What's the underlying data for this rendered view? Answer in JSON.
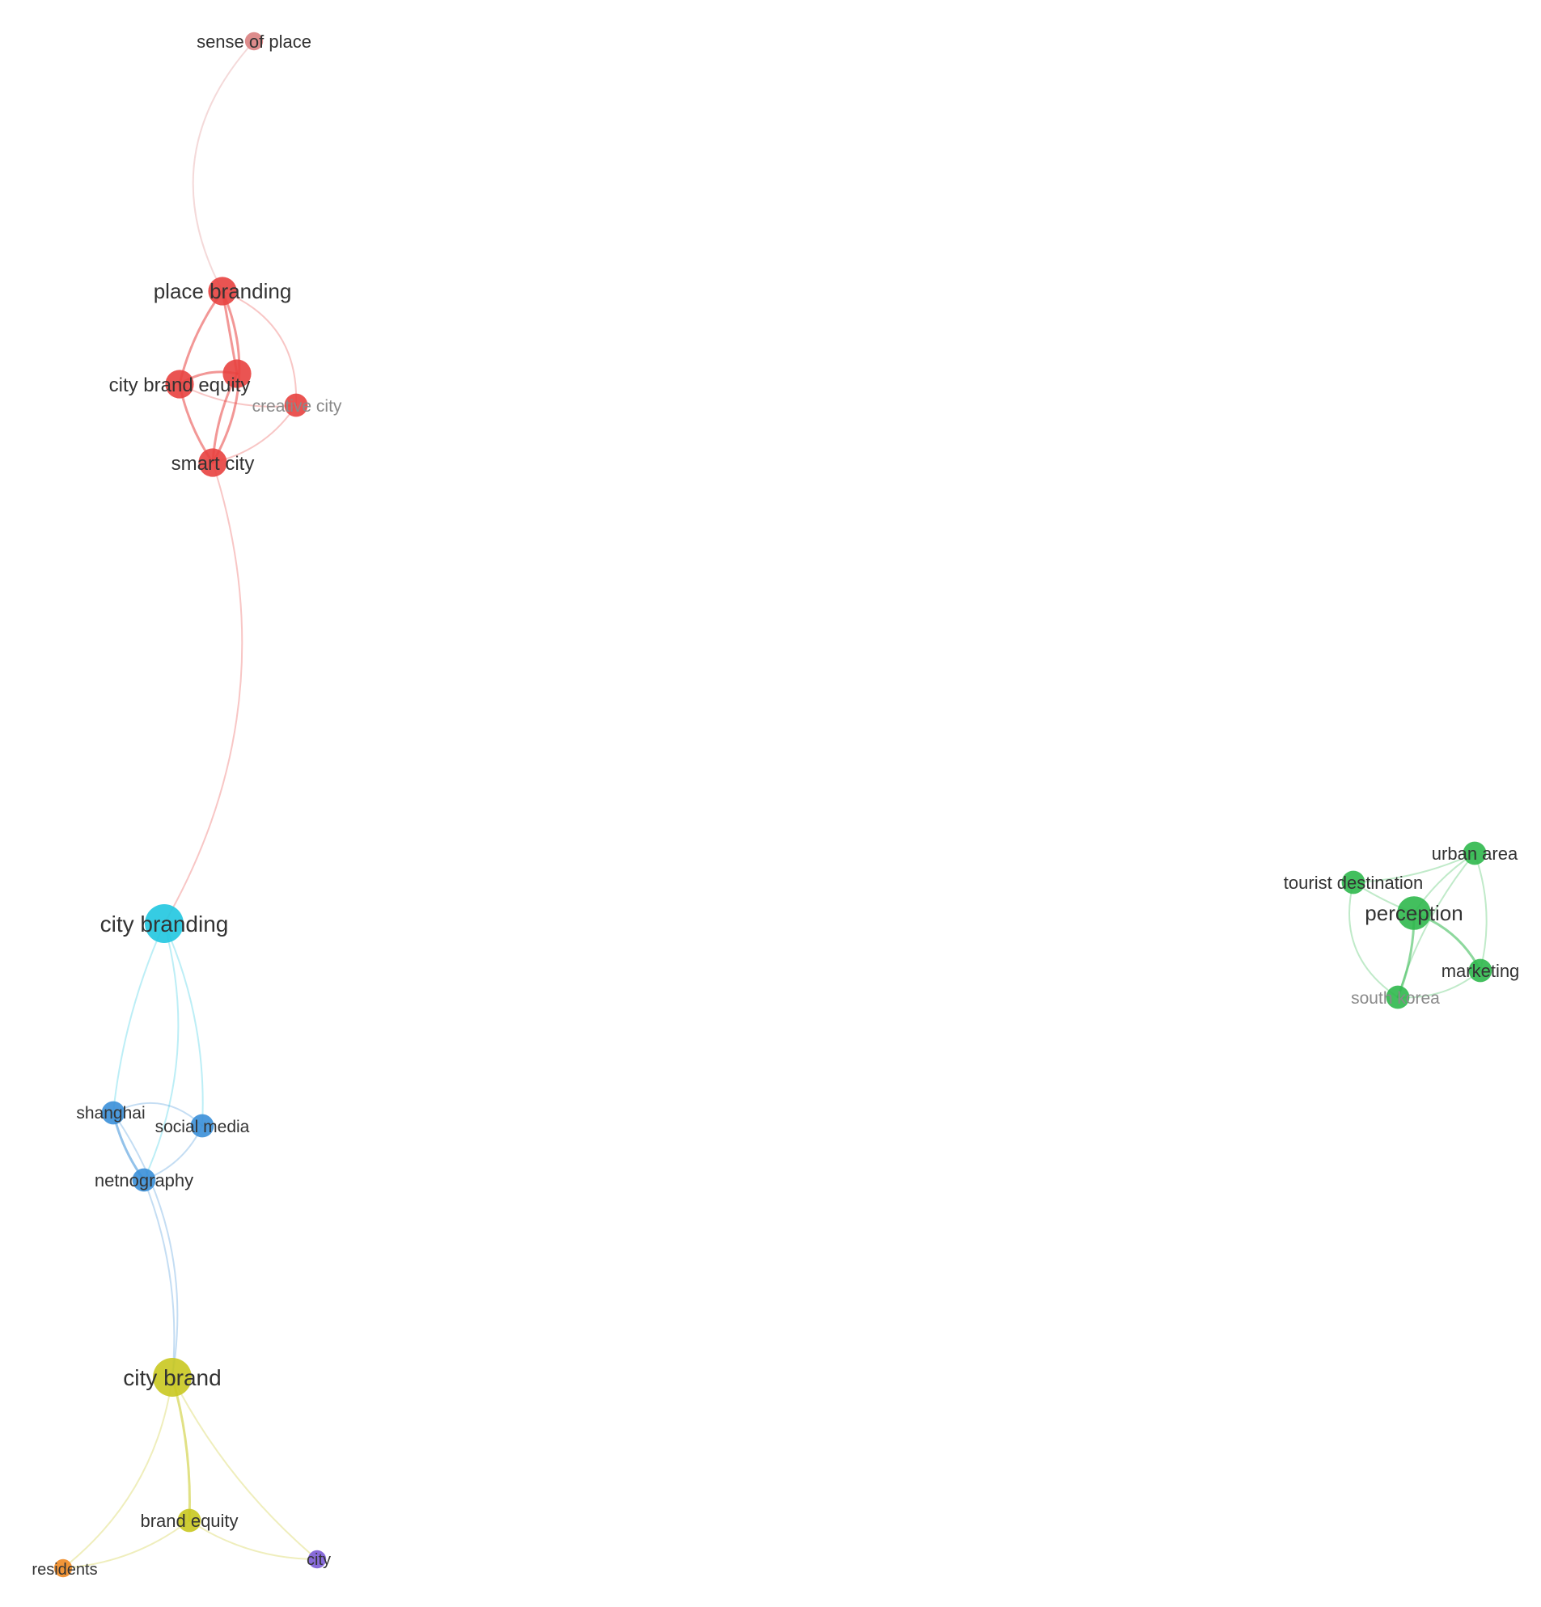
{
  "clusters": {
    "red": "#e8413f",
    "cyan": "#20c6e0",
    "blue": "#3a8fd8",
    "yellow": "#c9c820",
    "green": "#2fb84d",
    "orange": "#f08a24",
    "purple": "#7b5bd6",
    "salmon": "#d98080"
  },
  "nodes": [
    {
      "id": "sense-of-place",
      "label": "sense of place",
      "cluster": "salmon",
      "weight": 1,
      "faint": false
    },
    {
      "id": "place-branding",
      "label": "place branding",
      "cluster": "red",
      "weight": 3,
      "faint": false
    },
    {
      "id": "unlabeled-red",
      "label": "",
      "cluster": "red",
      "weight": 3,
      "faint": false
    },
    {
      "id": "city-brand-equity",
      "label": "city brand equity",
      "cluster": "red",
      "weight": 3,
      "faint": false
    },
    {
      "id": "creative-city",
      "label": "creative city",
      "cluster": "red",
      "weight": 2,
      "faint": true
    },
    {
      "id": "smart-city",
      "label": "smart city",
      "cluster": "red",
      "weight": 3,
      "faint": false
    },
    {
      "id": "city-branding",
      "label": "city branding",
      "cluster": "cyan",
      "weight": 5,
      "faint": false
    },
    {
      "id": "shanghai",
      "label": "shanghai",
      "cluster": "blue",
      "weight": 2,
      "faint": false
    },
    {
      "id": "social-media",
      "label": "social media",
      "cluster": "blue",
      "weight": 2,
      "faint": false
    },
    {
      "id": "netnography",
      "label": "netnography",
      "cluster": "blue",
      "weight": 2,
      "faint": false
    },
    {
      "id": "city-brand",
      "label": "city brand",
      "cluster": "yellow",
      "weight": 5,
      "faint": false
    },
    {
      "id": "brand-equity",
      "label": "brand equity",
      "cluster": "yellow",
      "weight": 2,
      "faint": false
    },
    {
      "id": "residents",
      "label": "residents",
      "cluster": "orange",
      "weight": 1,
      "faint": false
    },
    {
      "id": "city",
      "label": "city",
      "cluster": "purple",
      "weight": 1,
      "faint": false
    },
    {
      "id": "urban-area",
      "label": "urban area",
      "cluster": "green",
      "weight": 2,
      "faint": false
    },
    {
      "id": "tourist-destination",
      "label": "tourist destination",
      "cluster": "green",
      "weight": 2,
      "faint": false
    },
    {
      "id": "perception",
      "label": "perception",
      "cluster": "green",
      "weight": 4,
      "faint": false
    },
    {
      "id": "marketing",
      "label": "marketing",
      "cluster": "green",
      "weight": 2,
      "faint": false
    },
    {
      "id": "south-korea",
      "label": "south korea",
      "cluster": "green",
      "weight": 2,
      "faint": true
    }
  ],
  "links": [
    {
      "source": "sense-of-place",
      "target": "place-branding",
      "strength": 1
    },
    {
      "source": "place-branding",
      "target": "unlabeled-red",
      "strength": 2
    },
    {
      "source": "place-branding",
      "target": "city-brand-equity",
      "strength": 2
    },
    {
      "source": "place-branding",
      "target": "smart-city",
      "strength": 2
    },
    {
      "source": "place-branding",
      "target": "creative-city",
      "strength": 1
    },
    {
      "source": "unlabeled-red",
      "target": "city-brand-equity",
      "strength": 2
    },
    {
      "source": "unlabeled-red",
      "target": "smart-city",
      "strength": 2
    },
    {
      "source": "city-brand-equity",
      "target": "smart-city",
      "strength": 2
    },
    {
      "source": "city-brand-equity",
      "target": "creative-city",
      "strength": 1
    },
    {
      "source": "smart-city",
      "target": "creative-city",
      "strength": 1
    },
    {
      "source": "smart-city",
      "target": "city-branding",
      "strength": 1
    },
    {
      "source": "city-branding",
      "target": "shanghai",
      "strength": 1
    },
    {
      "source": "city-branding",
      "target": "social-media",
      "strength": 1
    },
    {
      "source": "city-branding",
      "target": "netnography",
      "strength": 1
    },
    {
      "source": "shanghai",
      "target": "social-media",
      "strength": 1
    },
    {
      "source": "shanghai",
      "target": "netnography",
      "strength": 2
    },
    {
      "source": "social-media",
      "target": "netnography",
      "strength": 1
    },
    {
      "source": "netnography",
      "target": "city-brand",
      "strength": 1
    },
    {
      "source": "shanghai",
      "target": "city-brand",
      "strength": 1
    },
    {
      "source": "city-brand",
      "target": "brand-equity",
      "strength": 2
    },
    {
      "source": "city-brand",
      "target": "residents",
      "strength": 1
    },
    {
      "source": "city-brand",
      "target": "city",
      "strength": 1
    },
    {
      "source": "brand-equity",
      "target": "residents",
      "strength": 1
    },
    {
      "source": "brand-equity",
      "target": "city",
      "strength": 1
    },
    {
      "source": "tourist-destination",
      "target": "urban-area",
      "strength": 1
    },
    {
      "source": "tourist-destination",
      "target": "perception",
      "strength": 1
    },
    {
      "source": "tourist-destination",
      "target": "south-korea",
      "strength": 1
    },
    {
      "source": "urban-area",
      "target": "perception",
      "strength": 1
    },
    {
      "source": "urban-area",
      "target": "marketing",
      "strength": 1
    },
    {
      "source": "urban-area",
      "target": "south-korea",
      "strength": 1
    },
    {
      "source": "perception",
      "target": "marketing",
      "strength": 2
    },
    {
      "source": "perception",
      "target": "south-korea",
      "strength": 2
    },
    {
      "source": "marketing",
      "target": "south-korea",
      "strength": 1
    }
  ]
}
